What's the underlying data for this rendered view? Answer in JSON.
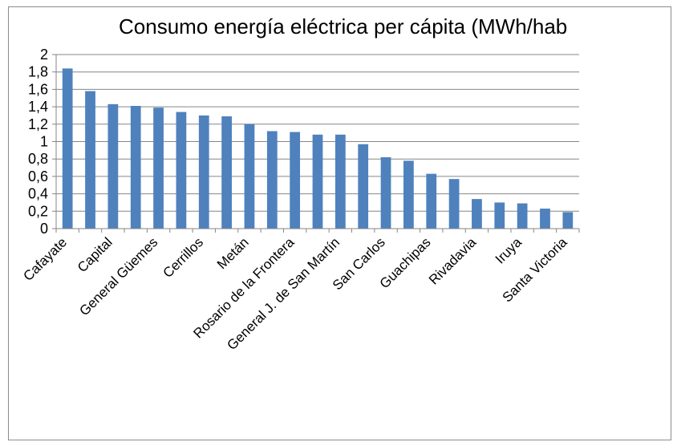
{
  "chart_data": {
    "type": "bar",
    "title": "Consumo energía eléctrica per cápita (MWh/hab",
    "xlabel": "",
    "ylabel": "",
    "ylim": [
      0,
      2
    ],
    "yticks": [
      "0",
      "0,2",
      "0,4",
      "0,6",
      "0,8",
      "1",
      "1,2",
      "1,4",
      "1,6",
      "1,8",
      "2"
    ],
    "categories": [
      "Cafayate",
      "",
      "Capital",
      "",
      "General Güemes",
      "",
      "Cerrillos",
      "",
      "Metán",
      "",
      "Rosario de la Frontera",
      "",
      "General J. de San Martín",
      "",
      "San Carlos",
      "",
      "Guachipas",
      "",
      "Rivadavia",
      "",
      "Iruya",
      "",
      "Santa Victoria"
    ],
    "values": [
      1.84,
      1.58,
      1.43,
      1.41,
      1.39,
      1.34,
      1.3,
      1.29,
      1.2,
      1.12,
      1.11,
      1.08,
      1.08,
      0.97,
      0.82,
      0.78,
      0.63,
      0.57,
      0.34,
      0.3,
      0.29,
      0.23,
      0.19
    ],
    "grid": true,
    "legend": "none",
    "bar_color": "#4F81BD"
  }
}
